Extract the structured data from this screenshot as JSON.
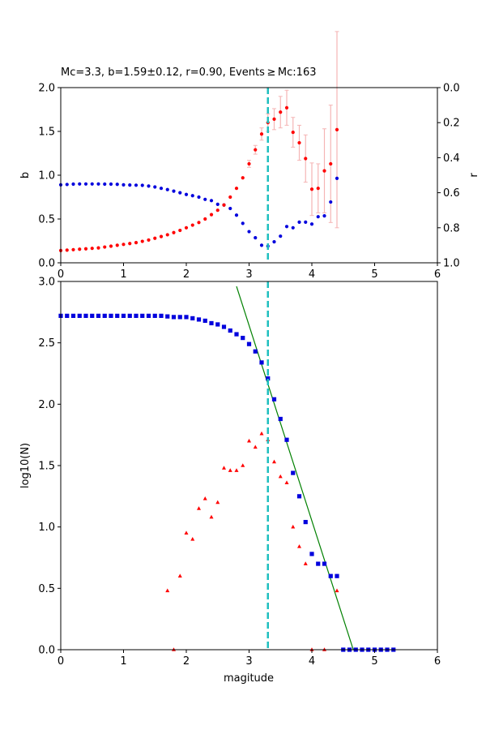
{
  "chart_data": [
    {
      "type": "scatter",
      "title": "Mc=3.3, b=1.59±0.12, r=0.90, Events ≥ Mc:163",
      "xlabel": "",
      "ylabel": "b",
      "y2label": "r",
      "xlim": [
        0,
        6
      ],
      "ylim": [
        0,
        2.0
      ],
      "y2lim": [
        1.0,
        0.0
      ],
      "xticks": [
        "0",
        "1",
        "2",
        "3",
        "4",
        "5",
        "6"
      ],
      "yticks": [
        "0.0",
        "0.5",
        "1.0",
        "1.5",
        "2.0"
      ],
      "y2ticks": [
        "0.0",
        "0.2",
        "0.4",
        "0.6",
        "0.8",
        "1.0"
      ],
      "vline": {
        "x": 3.3,
        "color": "#1ebfbf"
      },
      "colors": {
        "b": "#ff0000",
        "b_err": "#f5b5b5",
        "r": "#0000dd"
      },
      "series_b": {
        "x": [
          0.0,
          0.1,
          0.2,
          0.3,
          0.4,
          0.5,
          0.6,
          0.7,
          0.8,
          0.9,
          1.0,
          1.1,
          1.2,
          1.3,
          1.4,
          1.5,
          1.6,
          1.7,
          1.8,
          1.9,
          2.0,
          2.1,
          2.2,
          2.3,
          2.4,
          2.5,
          2.6,
          2.7,
          2.8,
          2.9,
          3.0,
          3.1,
          3.2,
          3.3,
          3.4,
          3.5,
          3.6,
          3.7,
          3.8,
          3.9,
          4.0,
          4.1,
          4.2,
          4.3,
          4.4
        ],
        "y": [
          0.14,
          0.145,
          0.15,
          0.155,
          0.16,
          0.165,
          0.17,
          0.18,
          0.19,
          0.2,
          0.21,
          0.22,
          0.23,
          0.245,
          0.26,
          0.28,
          0.3,
          0.32,
          0.345,
          0.37,
          0.4,
          0.43,
          0.46,
          0.5,
          0.55,
          0.6,
          0.66,
          0.75,
          0.85,
          0.97,
          1.13,
          1.29,
          1.47,
          1.6,
          1.64,
          1.72,
          1.77,
          1.49,
          1.37,
          1.19,
          0.84,
          0.85,
          1.05,
          1.13,
          1.52
        ],
        "err": [
          0,
          0,
          0,
          0,
          0,
          0,
          0,
          0,
          0,
          0,
          0,
          0,
          0,
          0,
          0,
          0,
          0,
          0,
          0,
          0,
          0,
          0,
          0,
          0,
          0,
          0,
          0,
          0,
          0,
          0,
          0.04,
          0.05,
          0.07,
          0.1,
          0.12,
          0.18,
          0.2,
          0.17,
          0.2,
          0.27,
          0.3,
          0.28,
          0.48,
          0.67,
          1.12
        ]
      },
      "series_r": {
        "x": [
          0.0,
          0.1,
          0.2,
          0.3,
          0.4,
          0.5,
          0.6,
          0.7,
          0.8,
          0.9,
          1.0,
          1.1,
          1.2,
          1.3,
          1.4,
          1.5,
          1.6,
          1.7,
          1.8,
          1.9,
          2.0,
          2.1,
          2.2,
          2.3,
          2.4,
          2.5,
          2.6,
          2.7,
          2.8,
          2.9,
          3.0,
          3.1,
          3.2,
          3.3,
          3.4,
          3.5,
          3.6,
          3.7,
          3.8,
          3.9,
          4.0,
          4.1,
          4.2,
          4.3,
          4.4
        ],
        "y": [
          0.555,
          0.553,
          0.551,
          0.55,
          0.55,
          0.55,
          0.55,
          0.551,
          0.551,
          0.552,
          0.555,
          0.556,
          0.557,
          0.558,
          0.562,
          0.567,
          0.575,
          0.582,
          0.591,
          0.6,
          0.61,
          0.617,
          0.625,
          0.638,
          0.645,
          0.666,
          0.67,
          0.69,
          0.728,
          0.775,
          0.822,
          0.857,
          0.9,
          0.905,
          0.88,
          0.848,
          0.793,
          0.8,
          0.768,
          0.768,
          0.779,
          0.737,
          0.732,
          0.653,
          0.518
        ]
      }
    },
    {
      "type": "scatter",
      "title": "",
      "xlabel": "magitude",
      "ylabel": "log10(N)",
      "xlim": [
        0,
        6
      ],
      "ylim": [
        0,
        3.0
      ],
      "xticks": [
        "0",
        "1",
        "2",
        "3",
        "4",
        "5",
        "6"
      ],
      "yticks": [
        "0.0",
        "0.5",
        "1.0",
        "1.5",
        "2.0",
        "2.5",
        "3.0"
      ],
      "vline": {
        "x": 3.3,
        "color": "#1ebfbf"
      },
      "colors": {
        "cumulative": "#0000dd",
        "noncumulative": "#ff0000",
        "fit": "#008000"
      },
      "cumulative": {
        "x": [
          0.0,
          0.1,
          0.2,
          0.3,
          0.4,
          0.5,
          0.6,
          0.7,
          0.8,
          0.9,
          1.0,
          1.1,
          1.2,
          1.3,
          1.4,
          1.5,
          1.6,
          1.7,
          1.8,
          1.9,
          2.0,
          2.1,
          2.2,
          2.3,
          2.4,
          2.5,
          2.6,
          2.7,
          2.8,
          2.9,
          3.0,
          3.1,
          3.2,
          3.3,
          3.4,
          3.5,
          3.6,
          3.7,
          3.8,
          3.9,
          4.0,
          4.1,
          4.2,
          4.3,
          4.4,
          4.5,
          4.6,
          4.7,
          4.8,
          4.9,
          5.0,
          5.1,
          5.2,
          5.3
        ],
        "y": [
          2.72,
          2.72,
          2.72,
          2.72,
          2.72,
          2.72,
          2.72,
          2.72,
          2.72,
          2.72,
          2.72,
          2.72,
          2.72,
          2.72,
          2.72,
          2.72,
          2.72,
          2.715,
          2.71,
          2.71,
          2.71,
          2.7,
          2.69,
          2.68,
          2.66,
          2.65,
          2.63,
          2.6,
          2.57,
          2.54,
          2.49,
          2.43,
          2.34,
          2.21,
          2.04,
          1.88,
          1.71,
          1.44,
          1.25,
          1.04,
          0.78,
          0.7,
          0.7,
          0.6,
          0.6,
          0.0,
          0.0,
          0.0,
          0.0,
          0.0,
          0.0,
          0.0,
          0.0,
          0.0
        ]
      },
      "noncumulative": {
        "x": [
          1.7,
          1.8,
          1.9,
          2.0,
          2.1,
          2.2,
          2.3,
          2.4,
          2.5,
          2.6,
          2.7,
          2.8,
          2.9,
          3.0,
          3.1,
          3.2,
          3.3,
          3.4,
          3.5,
          3.6,
          3.7,
          3.8,
          3.9,
          4.0,
          4.2,
          4.4
        ],
        "y": [
          0.48,
          0.0,
          0.6,
          0.95,
          0.9,
          1.15,
          1.23,
          1.08,
          1.2,
          1.48,
          1.46,
          1.46,
          1.5,
          1.7,
          1.65,
          1.76,
          1.71,
          1.53,
          1.41,
          1.36,
          1.0,
          0.84,
          0.7,
          0.0,
          0.0,
          0.48
        ]
      },
      "fit": {
        "x": [
          2.8,
          4.66
        ],
        "y": [
          2.96,
          0.0
        ]
      }
    }
  ]
}
